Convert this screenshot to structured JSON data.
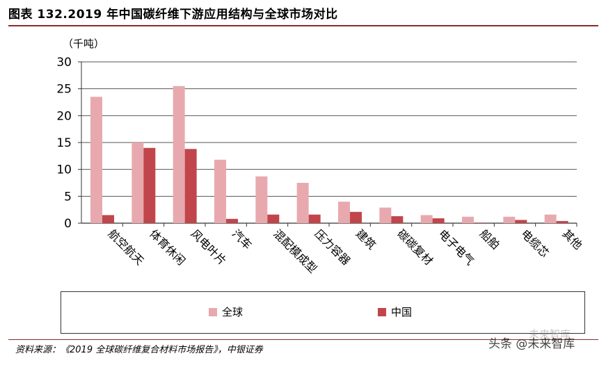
{
  "header": {
    "title": "图表 132.2019 年中国碳纤维下游应用结构与全球市场对比",
    "unit": "（千吨）"
  },
  "chart_data": {
    "type": "bar",
    "categories": [
      "航空航天",
      "体育休闲",
      "风电叶片",
      "汽车",
      "混配模成型",
      "压力容器",
      "建筑",
      "碳碳复材",
      "电子电气",
      "船舶",
      "电缆芯",
      "其他"
    ],
    "series": [
      {
        "name": "全球",
        "color": "#e8a9ae",
        "values": [
          23.5,
          15.0,
          25.5,
          11.8,
          8.7,
          7.5,
          4.0,
          2.9,
          1.5,
          1.2,
          1.2,
          1.6
        ]
      },
      {
        "name": "中国",
        "color": "#c0464b",
        "values": [
          1.5,
          14.0,
          13.8,
          0.8,
          1.6,
          1.6,
          2.1,
          1.3,
          0.9,
          0.1,
          0.6,
          0.4
        ]
      }
    ],
    "ylim": [
      0,
      30
    ],
    "yticks": [
      0,
      5,
      10,
      15,
      20,
      25,
      30
    ],
    "grid": true,
    "legend_position": "bottom"
  },
  "footer": {
    "source": "资料来源：《2019 全球碳纤维复合材料市场报告》，中银证券",
    "watermark": "头条 @未来智库",
    "watermark_faint": "未来智库"
  }
}
